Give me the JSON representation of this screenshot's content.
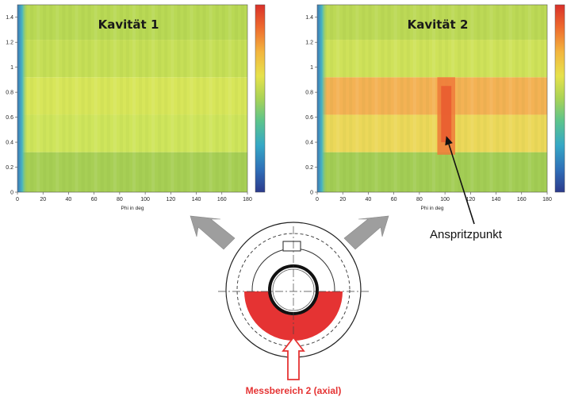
{
  "plots": [
    {
      "title": "Kavität 1",
      "xlabel": "Phi in deg",
      "x_ticks": [
        "0",
        "20",
        "40",
        "60",
        "80",
        "100",
        "120",
        "140",
        "160",
        "180"
      ],
      "y_ticks": [
        "0",
        "0.2",
        "0.4",
        "0.6",
        "0.8",
        "1",
        "1.2",
        "1.4"
      ],
      "xlim": [
        0,
        180
      ],
      "ylim": [
        0,
        1.5
      ],
      "colormap": "jet",
      "bands": [
        {
          "y0": 0.0,
          "y1": 0.32,
          "color": "#a7cf55"
        },
        {
          "y0": 0.32,
          "y1": 0.62,
          "color": "#cfe55c"
        },
        {
          "y0": 0.62,
          "y1": 0.92,
          "color": "#d8e65a"
        },
        {
          "y0": 0.92,
          "y1": 1.22,
          "color": "#c6df57"
        },
        {
          "y0": 1.22,
          "y1": 1.5,
          "color": "#b9d955"
        }
      ],
      "hotspot": null
    },
    {
      "title": "Kavität 2",
      "xlabel": "Phi in deg",
      "x_ticks": [
        "0",
        "20",
        "40",
        "60",
        "80",
        "100",
        "120",
        "140",
        "160",
        "180"
      ],
      "y_ticks": [
        "0",
        "0.2",
        "0.4",
        "0.6",
        "0.8",
        "1",
        "1.2",
        "1.4"
      ],
      "xlim": [
        0,
        180
      ],
      "ylim": [
        0,
        1.5
      ],
      "colormap": "jet",
      "bands": [
        {
          "y0": 0.0,
          "y1": 0.32,
          "color": "#a3cd55"
        },
        {
          "y0": 0.32,
          "y1": 0.62,
          "color": "#ecd85a"
        },
        {
          "y0": 0.62,
          "y1": 0.92,
          "color": "#f4b254"
        },
        {
          "y0": 0.92,
          "y1": 1.22,
          "color": "#cfe25a"
        },
        {
          "y0": 1.22,
          "y1": 1.5,
          "color": "#bcd956"
        }
      ],
      "hotspot": {
        "x0": 94,
        "x1": 108,
        "y0": 0.3,
        "y1": 0.92,
        "color": "#ee7a3a",
        "core": "#e8582e"
      }
    }
  ],
  "annotation": {
    "label": "Anspritzpunkt",
    "target_x": 101,
    "target_y": 0.45
  },
  "measurement": {
    "label": "Messbereich 2 (axial)"
  },
  "colors": {
    "accent_red": "#e53333",
    "arrow_gray": "#9e9e9e"
  }
}
